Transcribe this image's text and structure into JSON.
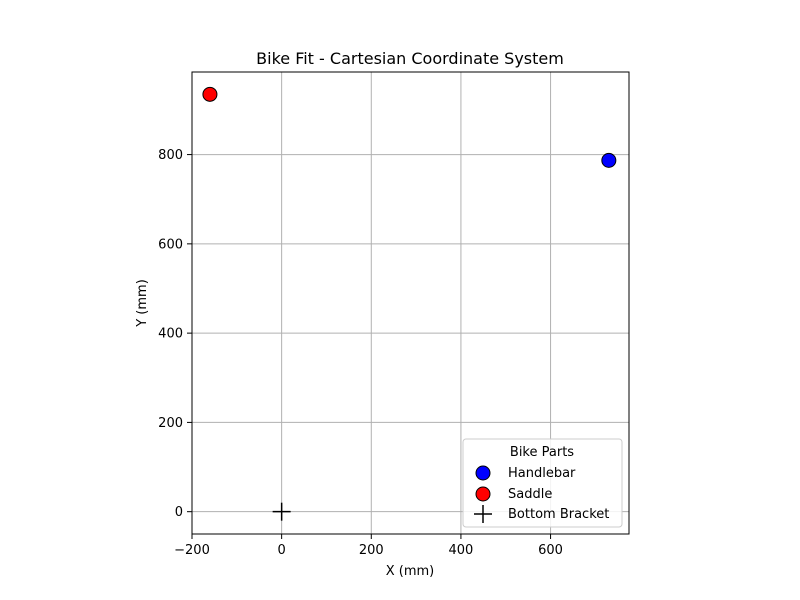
{
  "chart_data": {
    "type": "scatter",
    "title": "Bike Fit - Cartesian Coordinate System",
    "xlabel": "X (mm)",
    "ylabel": "Y (mm)",
    "xlim": [
      -200,
      775
    ],
    "ylim": [
      -50,
      985
    ],
    "xticks": [
      -200,
      0,
      200,
      400,
      600
    ],
    "yticks": [
      0,
      200,
      400,
      600,
      800
    ],
    "grid": true,
    "legend": {
      "title": "Bike Parts",
      "placement": "lower right"
    },
    "series": [
      {
        "name": "Handlebar",
        "marker": "circle",
        "color": "#0000ff",
        "points": [
          {
            "x": 730,
            "y": 787
          }
        ]
      },
      {
        "name": "Saddle",
        "marker": "circle",
        "color": "#ff0000",
        "points": [
          {
            "x": -160,
            "y": 935
          }
        ]
      },
      {
        "name": "Bottom Bracket",
        "marker": "plus",
        "color": "#000000",
        "points": [
          {
            "x": 0,
            "y": 0
          }
        ]
      }
    ]
  }
}
